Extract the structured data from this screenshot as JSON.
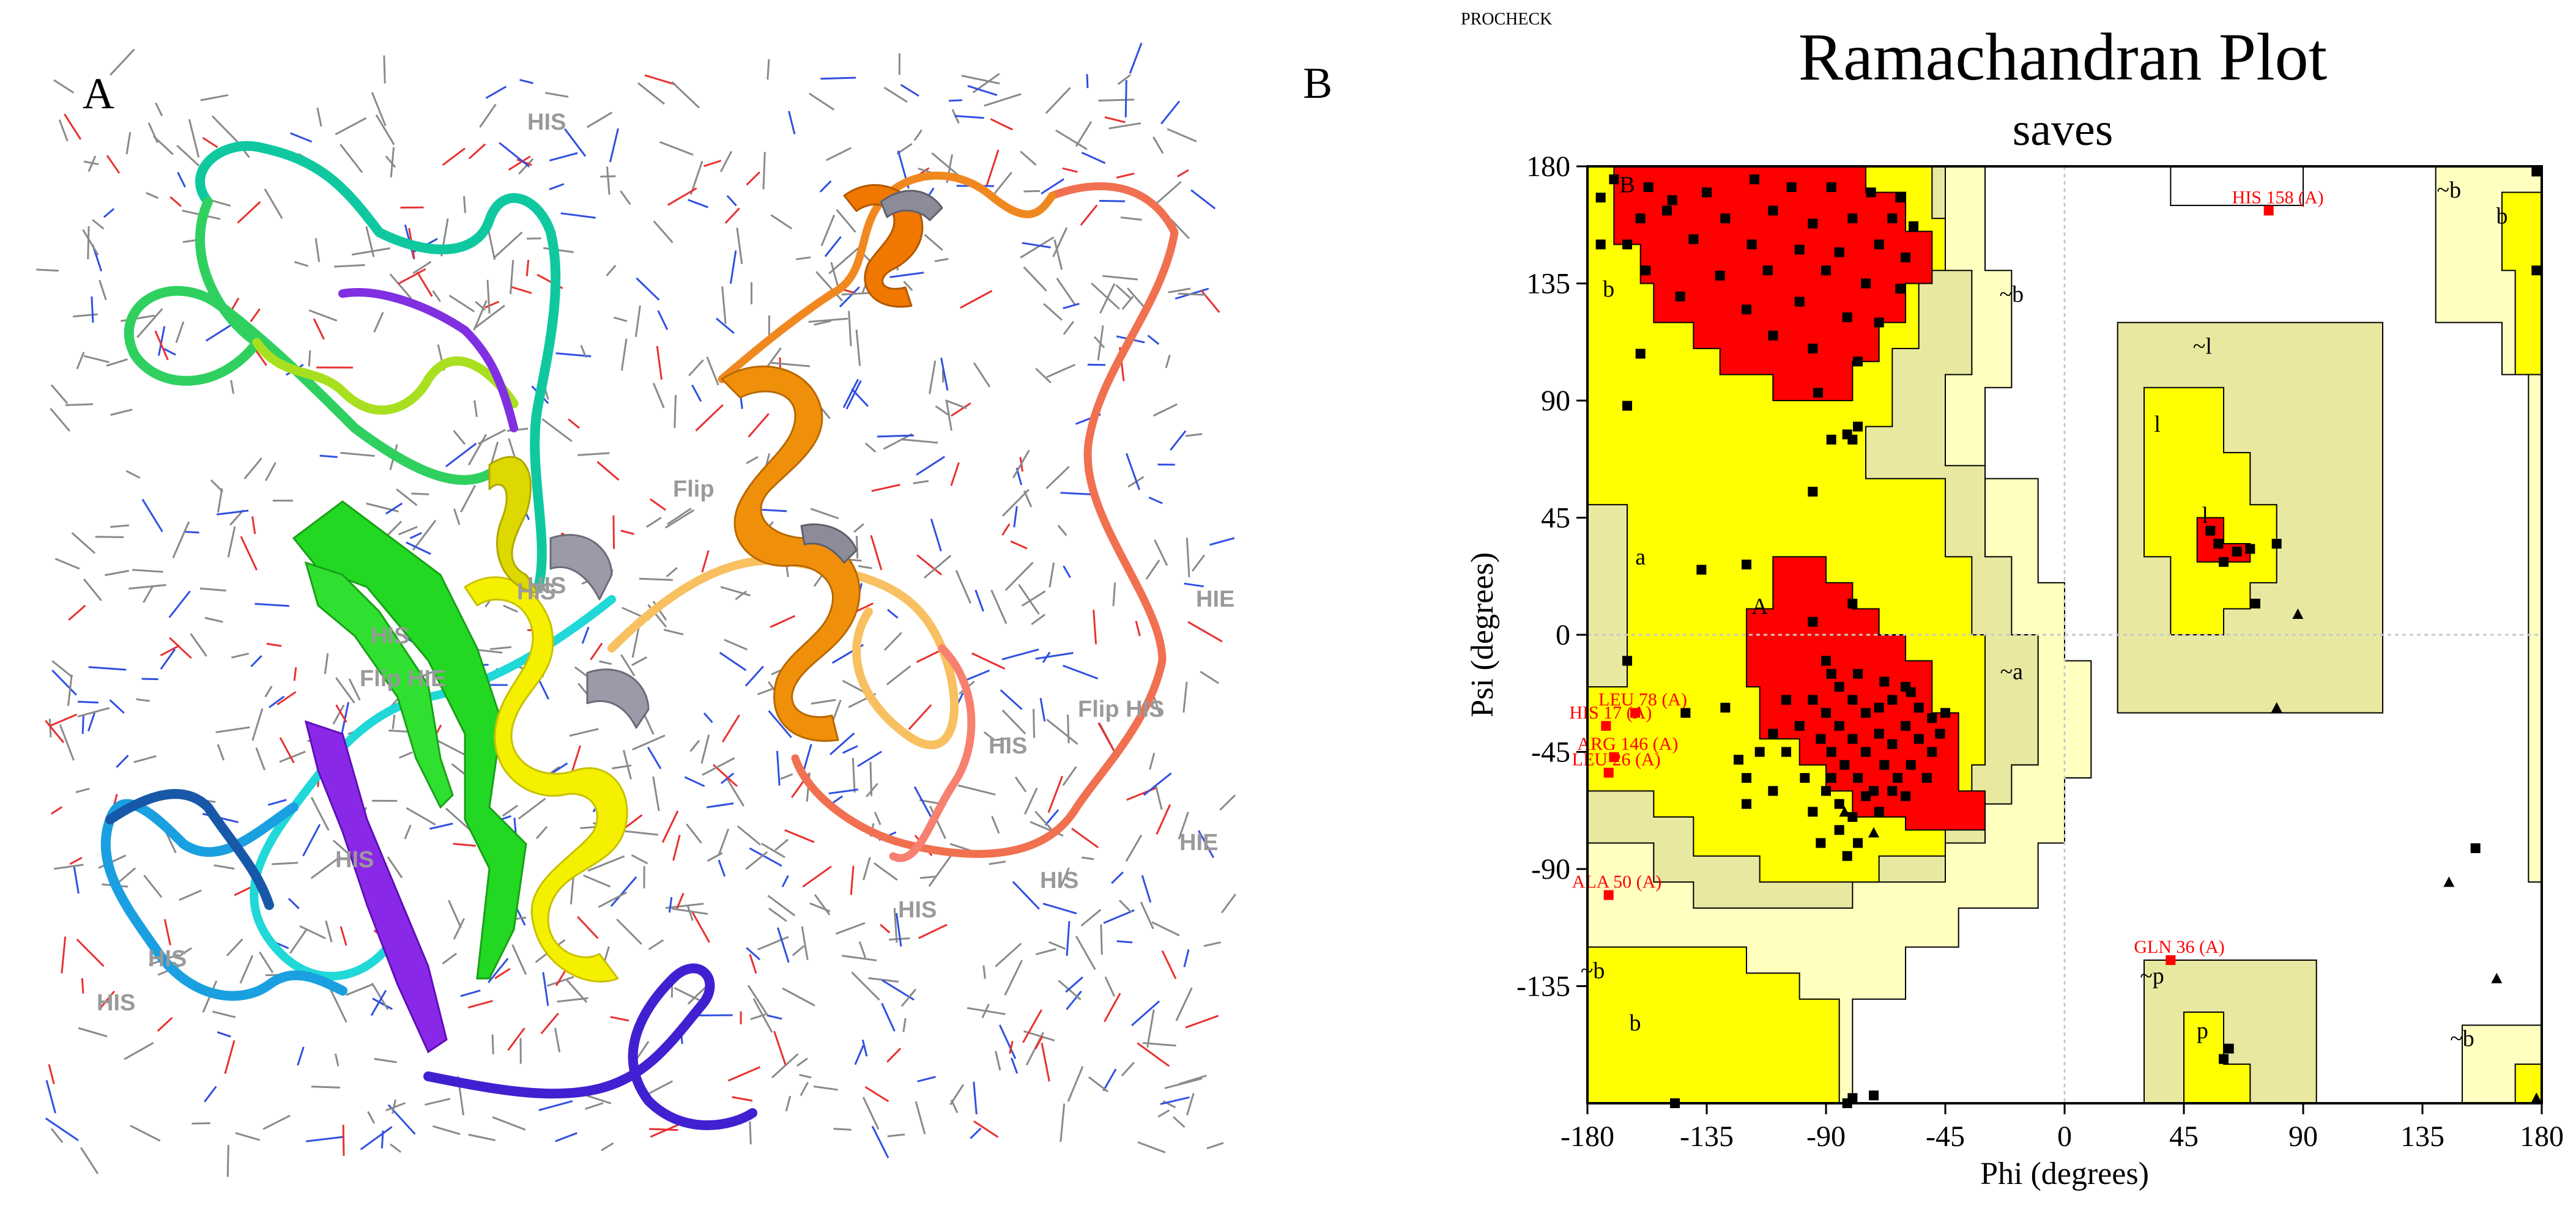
{
  "panel_a": {
    "letter": "A",
    "residue_labels": [
      "HIS",
      "HIS",
      "Flip",
      "HIE",
      "Flip HIE",
      "Flip HIS",
      "HIS",
      "HIE",
      "HIS",
      "HIS",
      "HIS",
      "HIS",
      "HIS",
      "HIS",
      "HIS"
    ]
  },
  "panel_b": {
    "letter": "B"
  },
  "chart_data": {
    "type": "scatter",
    "software_label": "PROCHECK",
    "title": "Ramachandran Plot",
    "subtitle": "saves",
    "xlabel": "Phi (degrees)",
    "ylabel": "Psi (degrees)",
    "xlim": [
      -180,
      180
    ],
    "ylim": [
      -180,
      180
    ],
    "x_ticks": [
      "-180",
      "-135",
      "-90",
      "-45",
      "0",
      "45",
      "90",
      "135",
      "180"
    ],
    "y_ticks": [
      "180",
      "135",
      "90",
      "45",
      "0",
      "-45",
      "-90",
      "-135"
    ],
    "region_labels": [
      {
        "text": "B",
        "phi": -165,
        "psi": 170
      },
      {
        "text": "b",
        "phi": -172,
        "psi": 130
      },
      {
        "text": "~b",
        "phi": -20,
        "psi": 128
      },
      {
        "text": "~l",
        "phi": 52,
        "psi": 108
      },
      {
        "text": "l",
        "phi": 35,
        "psi": 78
      },
      {
        "text": "l",
        "phi": 53,
        "psi": 43
      },
      {
        "text": "a",
        "phi": -160,
        "psi": 27
      },
      {
        "text": "A",
        "phi": -115,
        "psi": 8
      },
      {
        "text": "~a",
        "phi": -20,
        "psi": -17
      },
      {
        "text": "~b",
        "phi": -178,
        "psi": -132
      },
      {
        "text": "b",
        "phi": -162,
        "psi": -152
      },
      {
        "text": "~p",
        "phi": 33,
        "psi": -134
      },
      {
        "text": "p",
        "phi": 52,
        "psi": -155
      },
      {
        "text": "~b",
        "phi": 145,
        "psi": 168
      },
      {
        "text": "b",
        "phi": 165,
        "psi": 158
      },
      {
        "text": "~b",
        "phi": 150,
        "psi": -158
      }
    ],
    "outliers": [
      {
        "label": "HIS 158 (A)",
        "phi": 77,
        "psi": 163
      },
      {
        "label": "LEU 78 (A)",
        "phi": -162,
        "psi": -30
      },
      {
        "label": "HIS 17 (A)",
        "phi": -173,
        "psi": -35
      },
      {
        "label": "ARG 146 (A)",
        "phi": -170,
        "psi": -47
      },
      {
        "label": "LEU 26 (A)",
        "phi": -172,
        "psi": -53
      },
      {
        "label": "ALA 50 (A)",
        "phi": -172,
        "psi": -100
      },
      {
        "label": "GLN 36 (A)",
        "phi": 40,
        "psi": -125
      }
    ],
    "points": [
      [
        -170,
        175
      ],
      [
        -157,
        172
      ],
      [
        -148,
        167
      ],
      [
        -135,
        170
      ],
      [
        -117,
        175
      ],
      [
        -103,
        172
      ],
      [
        -88,
        172
      ],
      [
        -73,
        170
      ],
      [
        -62,
        168
      ],
      [
        -160,
        160
      ],
      [
        -150,
        163
      ],
      [
        -128,
        160
      ],
      [
        -110,
        163
      ],
      [
        -95,
        158
      ],
      [
        -80,
        160
      ],
      [
        -65,
        160
      ],
      [
        -57,
        157
      ],
      [
        -165,
        150
      ],
      [
        -140,
        152
      ],
      [
        -118,
        150
      ],
      [
        -100,
        148
      ],
      [
        -85,
        147
      ],
      [
        -70,
        150
      ],
      [
        -60,
        145
      ],
      [
        -158,
        140
      ],
      [
        -130,
        138
      ],
      [
        -112,
        140
      ],
      [
        -90,
        140
      ],
      [
        -75,
        135
      ],
      [
        -62,
        133
      ],
      [
        -145,
        130
      ],
      [
        -120,
        125
      ],
      [
        -100,
        128
      ],
      [
        -82,
        122
      ],
      [
        -70,
        120
      ],
      [
        -110,
        115
      ],
      [
        -95,
        110
      ],
      [
        -78,
        105
      ],
      [
        -93,
        93
      ],
      [
        -175,
        150
      ],
      [
        -175,
        168
      ],
      [
        -160,
        108
      ],
      [
        -165,
        88
      ],
      [
        -82,
        77
      ],
      [
        -78,
        80
      ],
      [
        -80,
        75
      ],
      [
        -88,
        75
      ],
      [
        -95,
        55
      ],
      [
        -120,
        27
      ],
      [
        -137,
        25
      ],
      [
        -95,
        5
      ],
      [
        -80,
        12
      ],
      [
        -90,
        -10
      ],
      [
        -88,
        -15
      ],
      [
        -85,
        -20
      ],
      [
        -80,
        -25
      ],
      [
        -75,
        -30
      ],
      [
        -70,
        -28
      ],
      [
        -65,
        -25
      ],
      [
        -60,
        -20
      ],
      [
        -55,
        -28
      ],
      [
        -50,
        -32
      ],
      [
        -95,
        -25
      ],
      [
        -90,
        -30
      ],
      [
        -85,
        -35
      ],
      [
        -80,
        -40
      ],
      [
        -75,
        -45
      ],
      [
        -70,
        -38
      ],
      [
        -65,
        -42
      ],
      [
        -60,
        -35
      ],
      [
        -55,
        -40
      ],
      [
        -50,
        -45
      ],
      [
        -58,
        -50
      ],
      [
        -63,
        -55
      ],
      [
        -68,
        -50
      ],
      [
        -72,
        -60
      ],
      [
        -78,
        -55
      ],
      [
        -83,
        -50
      ],
      [
        -88,
        -45
      ],
      [
        -92,
        -40
      ],
      [
        -100,
        -35
      ],
      [
        -105,
        -45
      ],
      [
        -98,
        -55
      ],
      [
        -90,
        -60
      ],
      [
        -85,
        -65
      ],
      [
        -80,
        -70
      ],
      [
        -75,
        -62
      ],
      [
        -70,
        -68
      ],
      [
        -65,
        -60
      ],
      [
        -60,
        -62
      ],
      [
        -52,
        -55
      ],
      [
        -47,
        -38
      ],
      [
        -45,
        -30
      ],
      [
        -58,
        -22
      ],
      [
        -68,
        -18
      ],
      [
        -78,
        -15
      ],
      [
        -88,
        -55
      ],
      [
        -95,
        -68
      ],
      [
        -85,
        -75
      ],
      [
        -78,
        -80
      ],
      [
        -82,
        -85
      ],
      [
        -110,
        -60
      ],
      [
        -115,
        -45
      ],
      [
        -120,
        -55
      ],
      [
        -110,
        -38
      ],
      [
        -105,
        -25
      ],
      [
        -128,
        -28
      ],
      [
        -143,
        -30
      ],
      [
        -120,
        -65
      ],
      [
        -123,
        -48
      ],
      [
        -92,
        -80
      ],
      [
        -165,
        -10
      ],
      [
        -147,
        -180
      ],
      [
        -80,
        -178
      ],
      [
        -82,
        -180
      ],
      [
        -72,
        -177
      ],
      [
        58,
        35
      ],
      [
        70,
        33
      ],
      [
        80,
        35
      ],
      [
        60,
        28
      ],
      [
        65,
        32
      ],
      [
        55,
        40
      ],
      [
        72,
        12
      ],
      [
        155,
        -82
      ],
      [
        62,
        -159
      ],
      [
        60,
        -163
      ],
      [
        178,
        178
      ],
      [
        178,
        140
      ]
    ],
    "triangles": [
      [
        -83,
        -68
      ],
      [
        -72,
        -76
      ],
      [
        88,
        8
      ],
      [
        80,
        -28
      ],
      [
        145,
        -95
      ],
      [
        163,
        -132
      ],
      [
        178,
        -178
      ]
    ],
    "colors": {
      "core": "#ff0000",
      "allowed": "#ffff00",
      "generous": "#e8e8a0",
      "edge": "#ffffc0",
      "outlier": "#ff0000",
      "point": "#000000"
    }
  }
}
